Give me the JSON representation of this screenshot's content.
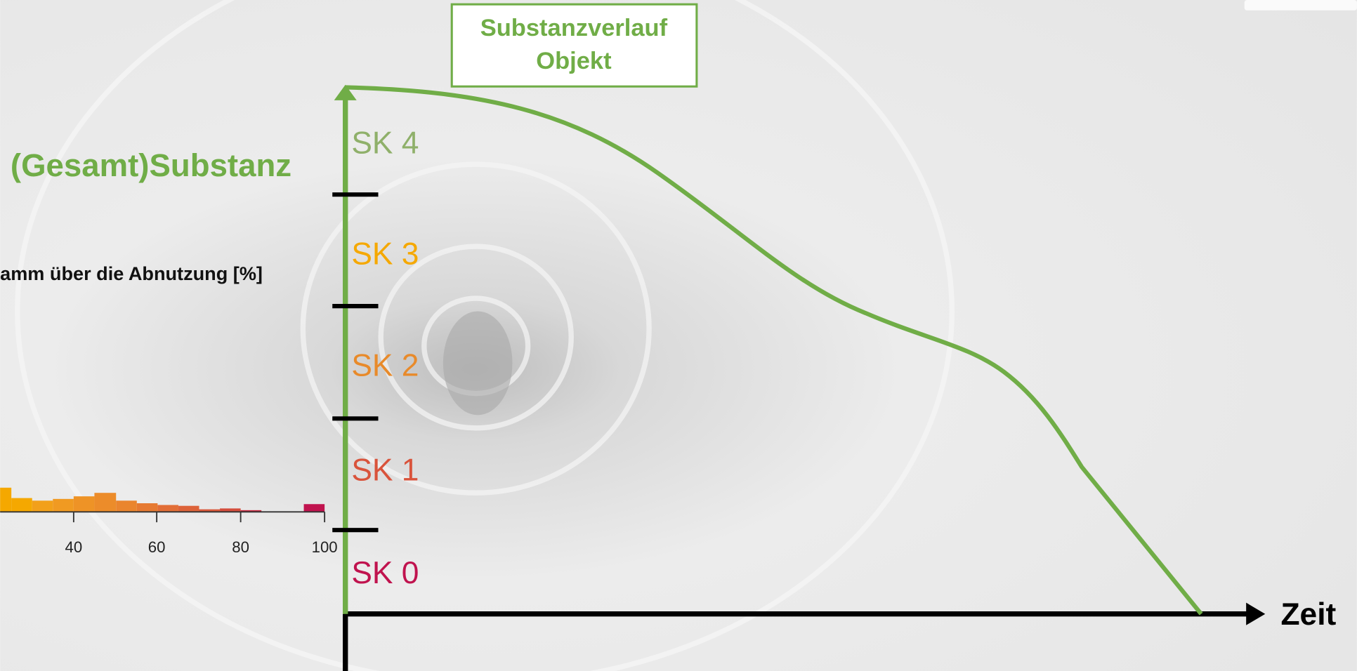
{
  "slide": {
    "title_lines": [
      "Substanzverlauf",
      "Objekt"
    ],
    "y_label": "(Gesamt)Substanz",
    "x_label": "Zeit",
    "classes": [
      "SK 4",
      "SK 3",
      "SK 2",
      "SK 1",
      "SK 0"
    ],
    "histogram": {
      "title": "amm über die Abnutzung [%]",
      "tick_labels": [
        "40",
        "60",
        "80",
        "100"
      ]
    }
  }
}
